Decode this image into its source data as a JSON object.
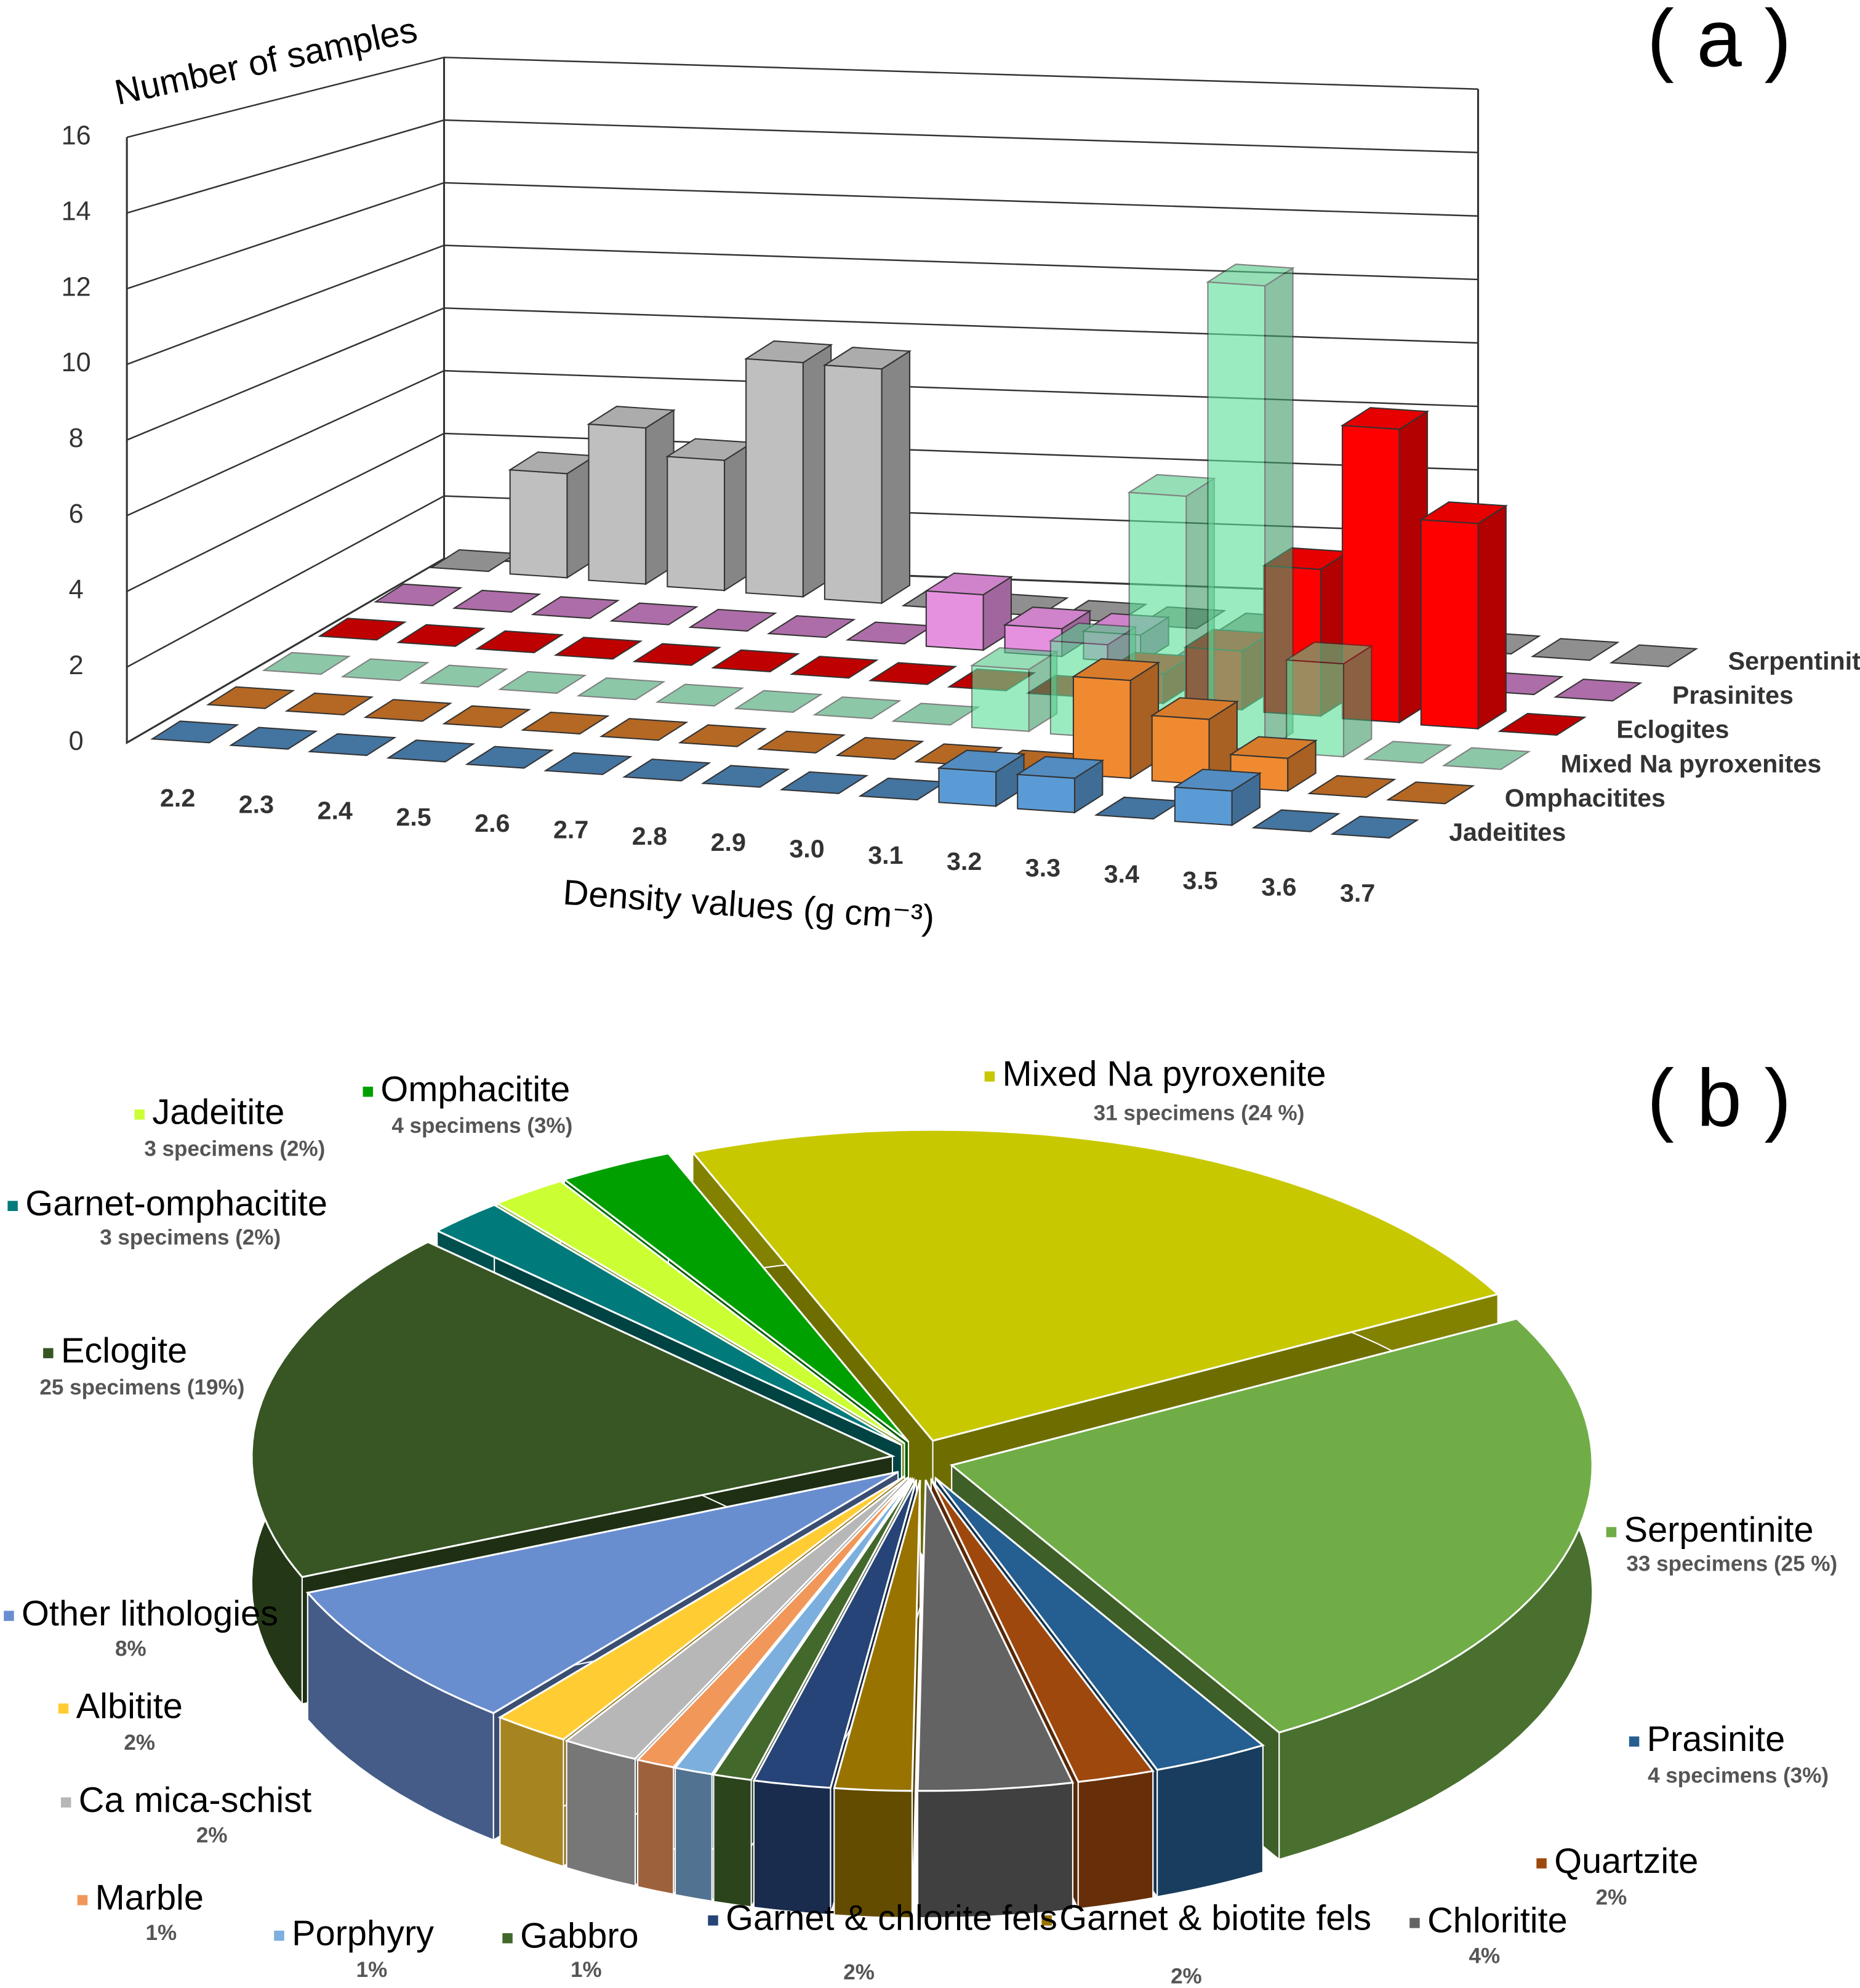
{
  "chart_data": [
    {
      "type": "bar3d",
      "panel_label": "( a )",
      "y_label": "Number of samples",
      "x_label": "Density values (g cm⁻³)",
      "categories": [
        "2.2",
        "2.3",
        "2.4",
        "2.5",
        "2.6",
        "2.7",
        "2.8",
        "2.9",
        "3.0",
        "3.1",
        "3.2",
        "3.3",
        "3.4",
        "3.5",
        "3.6",
        "3.7"
      ],
      "series": [
        {
          "name": "Serpentinites",
          "color": "#bfbfbf",
          "values": [
            0,
            4,
            6,
            5,
            9,
            9,
            0,
            0,
            0,
            0,
            0,
            0,
            0,
            0,
            0,
            0
          ]
        },
        {
          "name": "Prasinites",
          "color": "#e691e0",
          "values": [
            0,
            0,
            0,
            0,
            0,
            0,
            0,
            2,
            1,
            1,
            0,
            0,
            0,
            0,
            0,
            0
          ]
        },
        {
          "name": "Eclogites",
          "color": "#ff0000",
          "values": [
            0,
            0,
            0,
            0,
            0,
            0,
            0,
            0,
            0,
            0,
            1,
            2,
            5,
            10,
            7,
            0
          ]
        },
        {
          "name": "Mixed Na pyroxenites",
          "color": "#5fe09a",
          "values": [
            0,
            0,
            0,
            0,
            0,
            0,
            0,
            0,
            0,
            2,
            3,
            8,
            15,
            3,
            0,
            0
          ]
        },
        {
          "name": "Omphacitites",
          "color": "#f08a30",
          "values": [
            0,
            0,
            0,
            0,
            0,
            0,
            0,
            0,
            0,
            0,
            0,
            3,
            2,
            1,
            0,
            0
          ]
        },
        {
          "name": "Jadeitites",
          "color": "#5b9bd5",
          "values": [
            0,
            0,
            0,
            0,
            0,
            0,
            0,
            0,
            0,
            0,
            1,
            1,
            0,
            1,
            0,
            0
          ]
        }
      ],
      "ylim": [
        0,
        16
      ],
      "yticks": [
        0,
        2,
        4,
        6,
        8,
        10,
        12,
        14,
        16
      ],
      "grid": true
    },
    {
      "type": "pie3d",
      "panel_label": "( b )",
      "categories": [
        "Mixed Na pyroxenite",
        "Serpentinite",
        "Prasinite",
        "Quartzite",
        "Chloritite",
        "Garnet & biotite fels",
        "Garnet & chlorite fels",
        "Gabbro",
        "Porphyry",
        "Marble",
        "Ca mica-schist",
        "Albitite",
        "Other lithologies",
        "Eclogite",
        "Garnet-omphacitite",
        "Jadeitite",
        "Omphacitite"
      ],
      "values": [
        24,
        25,
        3,
        2,
        4,
        2,
        2,
        1,
        1,
        1,
        2,
        2,
        8,
        19,
        2,
        2,
        3
      ],
      "value_labels": [
        "31 specimens (24 %)",
        "33 specimens (25 %)",
        "4 specimens (3%)",
        "2%",
        "4%",
        "2%",
        "2%",
        "1%",
        "1%",
        "1%",
        "2%",
        "2%",
        "8%",
        "25 specimens (19%)",
        "3 specimens (2%)",
        "3 specimens (2%)",
        "4 specimens (3%)"
      ],
      "colors": [
        "#c8c800",
        "#70ad47",
        "#255e91",
        "#9e480e",
        "#636363",
        "#997300",
        "#264478",
        "#43682b",
        "#7cafdd",
        "#f1975a",
        "#b7b7b7",
        "#ffcd33",
        "#698ed0",
        "#375623",
        "#007a7a",
        "#ccff33",
        "#00a000"
      ]
    }
  ]
}
